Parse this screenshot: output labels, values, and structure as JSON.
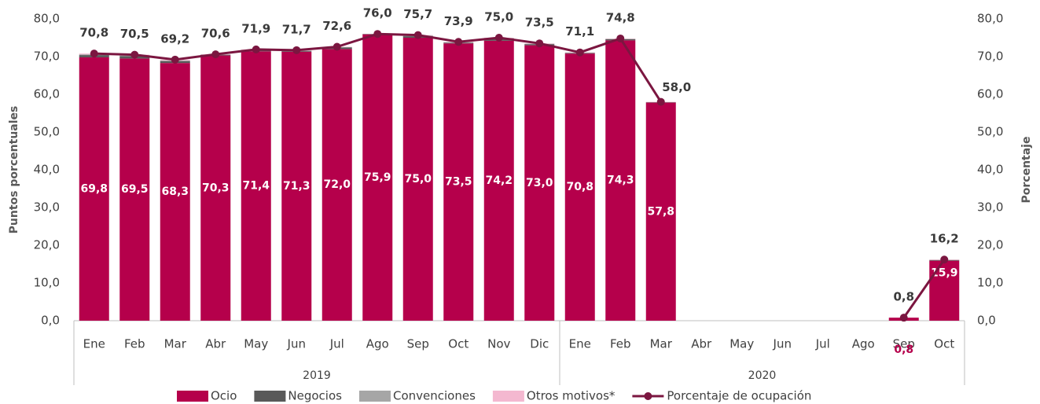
{
  "chart_data": {
    "type": "bar",
    "y_label": "Puntos porcentuales",
    "y2_label": "Porcentaje",
    "groups": [
      {
        "label": "2019",
        "categories": [
          "Ene",
          "Feb",
          "Mar",
          "Abr",
          "May",
          "Jun",
          "Jul",
          "Ago",
          "Sep",
          "Oct",
          "Nov",
          "Dic"
        ]
      },
      {
        "label": "2020",
        "categories": [
          "Ene",
          "Feb",
          "Mar",
          "Abr",
          "May",
          "Jun",
          "Jul",
          "Ago",
          "Sep",
          "Oct"
        ]
      }
    ],
    "ylim": [
      0,
      80
    ],
    "yticks": [
      {
        "value": 0,
        "label": "0,0"
      },
      {
        "value": 10,
        "label": "10,0"
      },
      {
        "value": 20,
        "label": "20,0"
      },
      {
        "value": 30,
        "label": "30,0"
      },
      {
        "value": 40,
        "label": "40,0"
      },
      {
        "value": 50,
        "label": "50,0"
      },
      {
        "value": 60,
        "label": "60,0"
      },
      {
        "value": 70,
        "label": "70,0"
      },
      {
        "value": 80,
        "label": "80,0"
      }
    ],
    "y2lim": [
      0,
      80
    ],
    "y2ticks": [
      {
        "value": 0,
        "label": "0,0"
      },
      {
        "value": 10,
        "label": "10,0"
      },
      {
        "value": 20,
        "label": "20,0"
      },
      {
        "value": 30,
        "label": "30,0"
      },
      {
        "value": 40,
        "label": "40,0"
      },
      {
        "value": 50,
        "label": "50,0"
      },
      {
        "value": 60,
        "label": "60,0"
      },
      {
        "value": 70,
        "label": "70,0"
      },
      {
        "value": 80,
        "label": "80,0"
      }
    ],
    "series": [
      {
        "name": "Ocio",
        "color": "#b5004b",
        "values": [
          69.8,
          69.5,
          68.3,
          70.3,
          71.4,
          71.3,
          72.0,
          75.9,
          75.0,
          73.5,
          74.2,
          73.0,
          70.8,
          74.3,
          57.8,
          null,
          null,
          null,
          null,
          null,
          0.8,
          15.9
        ],
        "value_labels": [
          "69,8",
          "69,5",
          "68,3",
          "70,3",
          "71,4",
          "71,3",
          "72,0",
          "75,9",
          "75,0",
          "73,5",
          "74,2",
          "73,0",
          "70,8",
          "74,3",
          "57,8",
          null,
          null,
          null,
          null,
          null,
          "0,8",
          "15,9"
        ]
      },
      {
        "name": "Negocios",
        "color": "#595959",
        "values": [
          0.6,
          0.6,
          0.5,
          0.2,
          0.3,
          0.2,
          0.4,
          0.1,
          0.4,
          0.2,
          0.5,
          0.3,
          0.2,
          0.3,
          0.1,
          null,
          null,
          null,
          null,
          null,
          0.0,
          0.2
        ]
      },
      {
        "name": "Convenciones",
        "color": "#a6a6a6",
        "values": [
          0.2,
          0.2,
          0.2,
          0.0,
          0.1,
          0.1,
          0.1,
          0.0,
          0.2,
          0.1,
          0.2,
          0.1,
          0.0,
          0.1,
          0.0,
          null,
          null,
          null,
          null,
          null,
          0.0,
          0.0
        ]
      },
      {
        "name": "Otros motivos*",
        "color": "#f4b8d0",
        "values": [
          0.2,
          0.2,
          0.2,
          0.1,
          0.1,
          0.1,
          0.1,
          0.0,
          0.1,
          0.1,
          0.1,
          0.1,
          0.1,
          0.1,
          0.1,
          null,
          null,
          null,
          null,
          null,
          0.0,
          0.1
        ]
      },
      {
        "name": "Porcentaje de ocupación",
        "color": "#7b1640",
        "type": "line",
        "axis": "y2",
        "values": [
          70.8,
          70.5,
          69.2,
          70.6,
          71.9,
          71.7,
          72.6,
          76.0,
          75.7,
          73.9,
          75.0,
          73.5,
          71.1,
          74.8,
          58.0,
          null,
          null,
          null,
          null,
          null,
          0.8,
          16.2
        ],
        "value_labels": [
          "70,8",
          "70,5",
          "69,2",
          "70,6",
          "71,9",
          "71,7",
          "72,6",
          "76,0",
          "75,7",
          "73,9",
          "75,0",
          "73,5",
          "71,1",
          "74,8",
          "58,0",
          null,
          null,
          null,
          null,
          null,
          "0,8",
          "16,2"
        ]
      }
    ]
  }
}
